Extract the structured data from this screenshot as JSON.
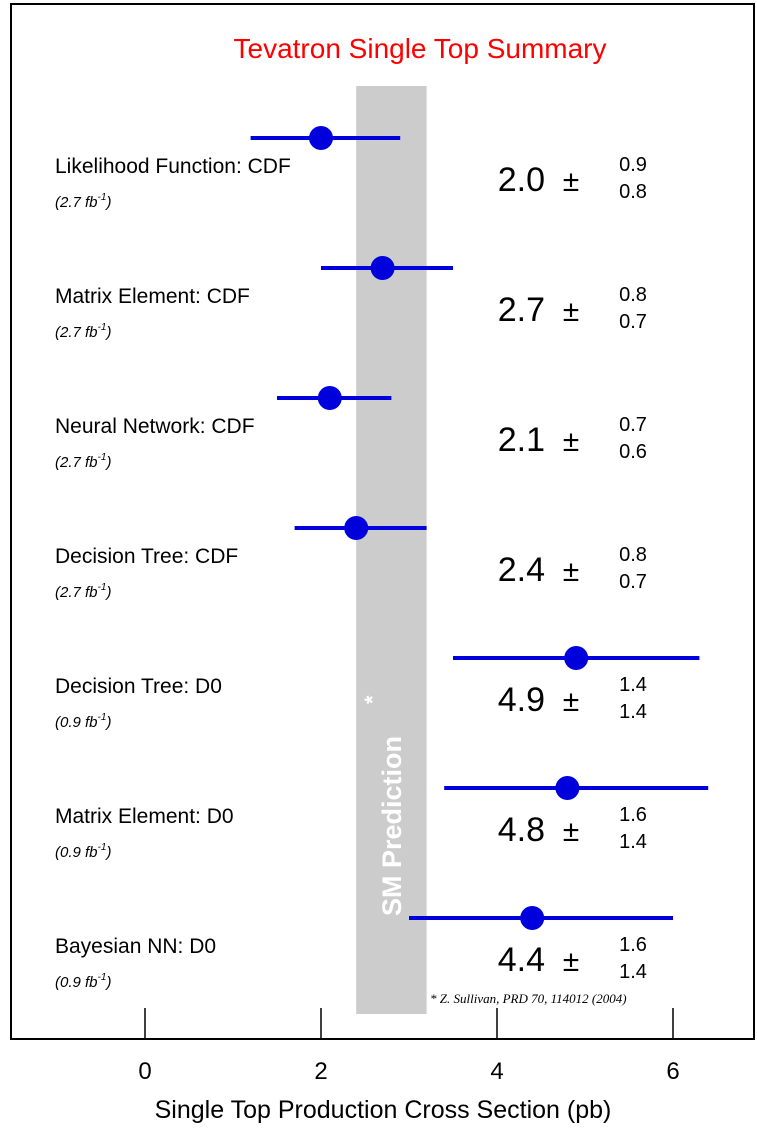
{
  "chart_data": {
    "type": "scatter",
    "title": "Tevatron Single Top Summary",
    "xlabel": "Single Top Production Cross Section (pb)",
    "xlim": [
      -1.1,
      7.0
    ],
    "xticks": [
      0,
      2,
      4,
      6
    ],
    "tick_labels": [
      "0",
      "2",
      "4",
      "6"
    ],
    "sm_prediction": {
      "label": "SM Prediction",
      "marker": "*",
      "x_min": 2.4,
      "x_max": 3.2
    },
    "footnote": "* Z. Sullivan, PRD 70, 114012 (2004)",
    "measurements": [
      {
        "name": "Likelihood Function: CDF",
        "lumi": "2.7",
        "value": 2.0,
        "err_up": 0.9,
        "err_down": 0.8,
        "value_text": "2.0",
        "up_text": "0.9",
        "down_text": "0.8"
      },
      {
        "name": "Matrix Element: CDF",
        "lumi": "2.7",
        "value": 2.7,
        "err_up": 0.8,
        "err_down": 0.7,
        "value_text": "2.7",
        "up_text": "0.8",
        "down_text": "0.7"
      },
      {
        "name": "Neural Network: CDF",
        "lumi": "2.7",
        "value": 2.1,
        "err_up": 0.7,
        "err_down": 0.6,
        "value_text": "2.1",
        "up_text": "0.7",
        "down_text": "0.6"
      },
      {
        "name": "Decision Tree: CDF",
        "lumi": "2.7",
        "value": 2.4,
        "err_up": 0.8,
        "err_down": 0.7,
        "value_text": "2.4",
        "up_text": "0.8",
        "down_text": "0.7"
      },
      {
        "name": "Decision Tree: D0",
        "lumi": "0.9",
        "value": 4.9,
        "err_up": 1.4,
        "err_down": 1.4,
        "value_text": "4.9",
        "up_text": "1.4",
        "down_text": "1.4"
      },
      {
        "name": "Matrix Element: D0",
        "lumi": "0.9",
        "value": 4.8,
        "err_up": 1.6,
        "err_down": 1.4,
        "value_text": "4.8",
        "up_text": "1.6",
        "down_text": "1.4"
      },
      {
        "name": "Bayesian NN: D0",
        "lumi": "0.9",
        "value": 4.4,
        "err_up": 1.6,
        "err_down": 1.4,
        "value_text": "4.4",
        "up_text": "1.6",
        "down_text": "1.4"
      }
    ],
    "colors": {
      "title": "#ff0000",
      "points": "#0000dd",
      "band": "#cccccc",
      "text": "#000000"
    }
  }
}
